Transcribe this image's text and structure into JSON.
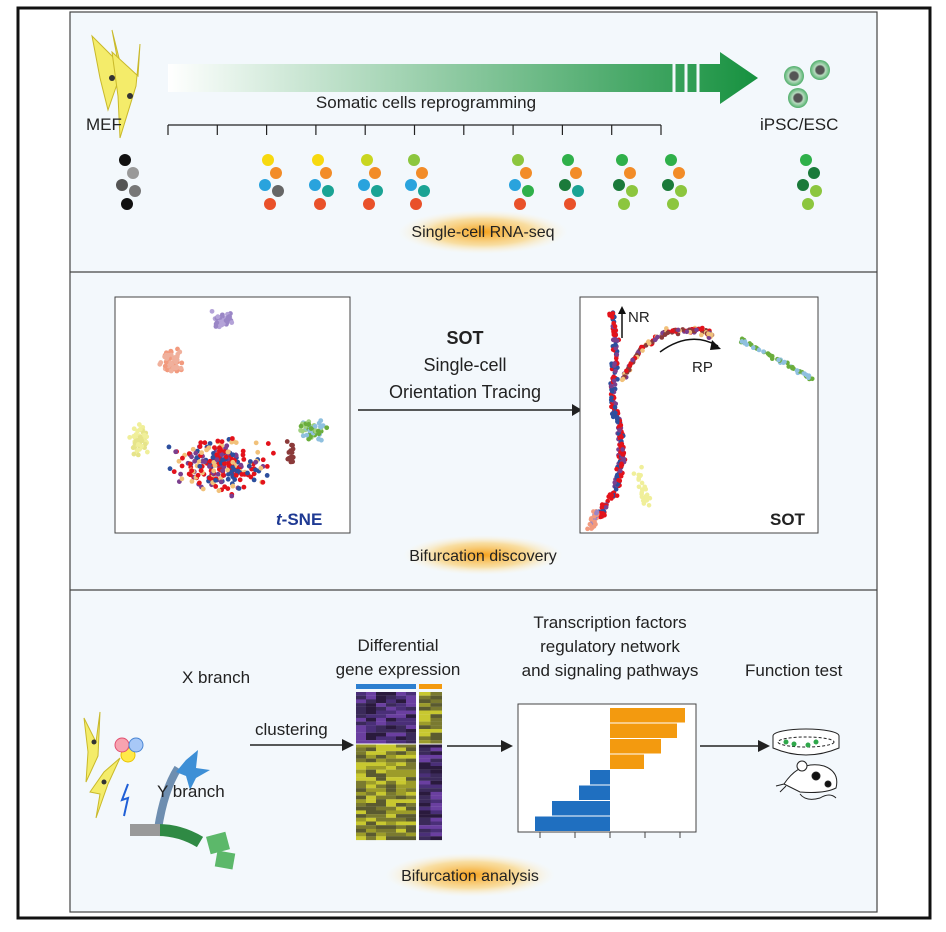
{
  "panel1": {
    "start_label": "MEF",
    "end_label": "iPSC/ESC",
    "arrow_label": "Somatic cells reprogramming",
    "method_label": "Single-cell RNA-seq"
  },
  "panel2": {
    "tsne_label_italic": "t",
    "tsne_label": "-SNE",
    "method_title": "SOT",
    "method_line1": "Single-cell",
    "method_line2": "Orientation Tracing",
    "sot_label": "SOT",
    "branch_nr": "NR",
    "branch_rp": "RP",
    "caption": "Bifurcation discovery"
  },
  "panel3": {
    "x_branch": "X branch",
    "y_branch": "Y branch",
    "clustering": "clustering",
    "dge_line1": "Differential",
    "dge_line2": "gene expression",
    "tf_line1": "Transcription factors",
    "tf_line2": "regulatory network",
    "tf_line3": "and signaling pathways",
    "function_test": "Function test",
    "caption": "Bifurcation analysis"
  },
  "colors": {
    "reprogramming_arrow": "#1a9641",
    "sot_red": "#e3121b",
    "tsne_blue": "#1f3a93",
    "bar_orange": "#f39a0f",
    "bar_blue": "#1f6fc0",
    "panel_bg": "#f3f8fc",
    "highlight": "#f7b731"
  },
  "icons": [
    "fibroblast-cell-icon",
    "stem-cell-colony-icon",
    "petri-dish-icon",
    "mouse-icon",
    "lightning-icon",
    "transcription-factor-icon"
  ]
}
